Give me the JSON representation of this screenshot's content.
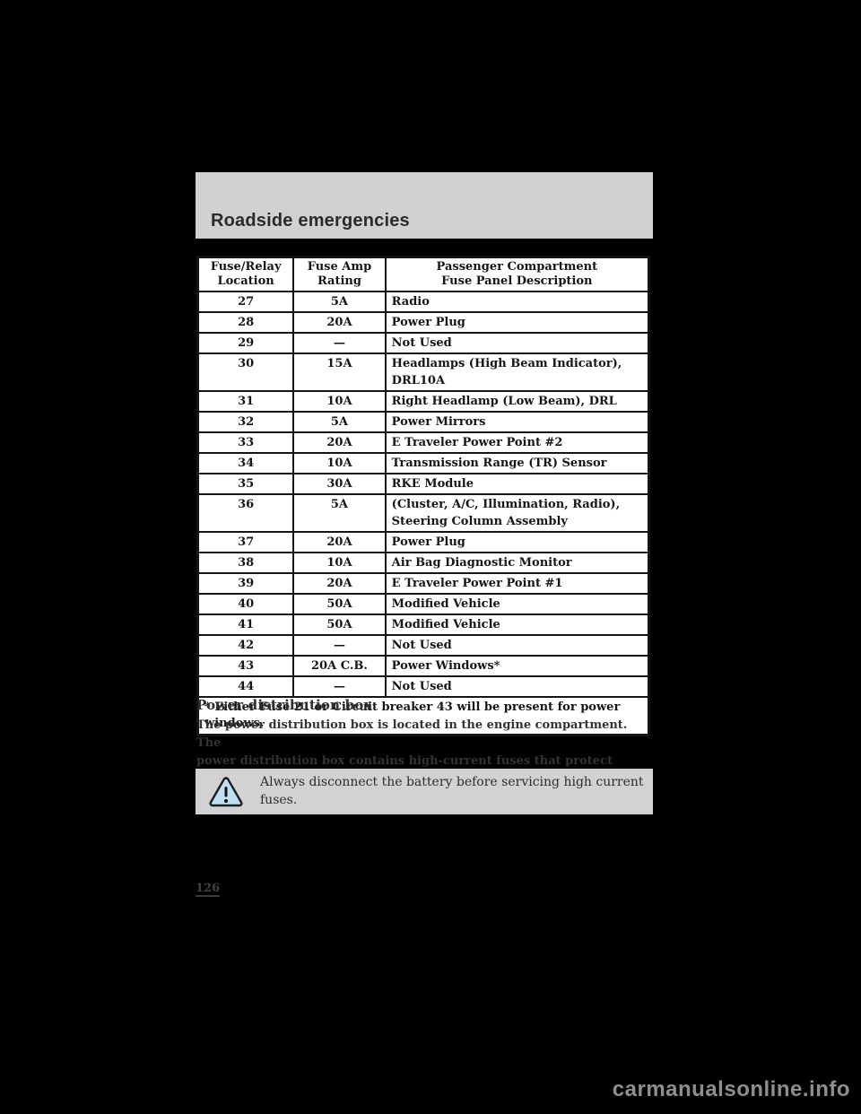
{
  "page": {
    "header_title": "Roadside emergencies",
    "page_number": "126",
    "watermark": "carmanualsonline.info"
  },
  "fuse_table": {
    "columns": [
      "Fuse/Relay\nLocation",
      "Fuse Amp\nRating",
      "Passenger Compartment\nFuse Panel Description"
    ],
    "rows": [
      {
        "location": "27",
        "rating": "5A",
        "description": "Radio"
      },
      {
        "location": "28",
        "rating": "20A",
        "description": "Power Plug"
      },
      {
        "location": "29",
        "rating": "—",
        "description": "Not Used"
      },
      {
        "location": "30",
        "rating": "15A",
        "description": "Headlamps (High Beam Indicator),\nDRL10A"
      },
      {
        "location": "31",
        "rating": "10A",
        "description": "Right Headlamp (Low Beam), DRL"
      },
      {
        "location": "32",
        "rating": "5A",
        "description": "Power Mirrors"
      },
      {
        "location": "33",
        "rating": "20A",
        "description": "E Traveler Power Point #2"
      },
      {
        "location": "34",
        "rating": "10A",
        "description": "Transmission Range (TR) Sensor"
      },
      {
        "location": "35",
        "rating": "30A",
        "description": "RKE Module"
      },
      {
        "location": "36",
        "rating": "5A",
        "description": "(Cluster, A/C, Illumination, Radio),\nSteering Column Assembly"
      },
      {
        "location": "37",
        "rating": "20A",
        "description": "Power Plug"
      },
      {
        "location": "38",
        "rating": "10A",
        "description": "Air Bag Diagnostic Monitor"
      },
      {
        "location": "39",
        "rating": "20A",
        "description": "E Traveler Power Point #1"
      },
      {
        "location": "40",
        "rating": "50A",
        "description": "Modified Vehicle"
      },
      {
        "location": "41",
        "rating": "50A",
        "description": "Modified Vehicle"
      },
      {
        "location": "42",
        "rating": "—",
        "description": "Not Used"
      },
      {
        "location": "43",
        "rating": "20A C.B.",
        "description": "Power Windows*"
      },
      {
        "location": "44",
        "rating": "—",
        "description": "Not Used"
      }
    ],
    "footnote": "* Either Fuse 21 or Circuit breaker 43 will be present for power\nwindows."
  },
  "section": {
    "heading": "Power distribution box",
    "body": "The power distribution box is located in the engine compartment. The\npower distribution box contains high-current fuses that protect your\nvehicle's main electrical systems from overloads."
  },
  "warning": {
    "icon": "warning-triangle-icon",
    "text": "Always disconnect the battery before servicing high current\nfuses."
  },
  "colors": {
    "background": "#000000",
    "header_band": "#d1d1d3",
    "warning_box": "#d2d2d4",
    "table_background": "#ffffff",
    "warning_icon_fill": "#bfe0f4",
    "watermark_gray": "#8e8e8e"
  }
}
